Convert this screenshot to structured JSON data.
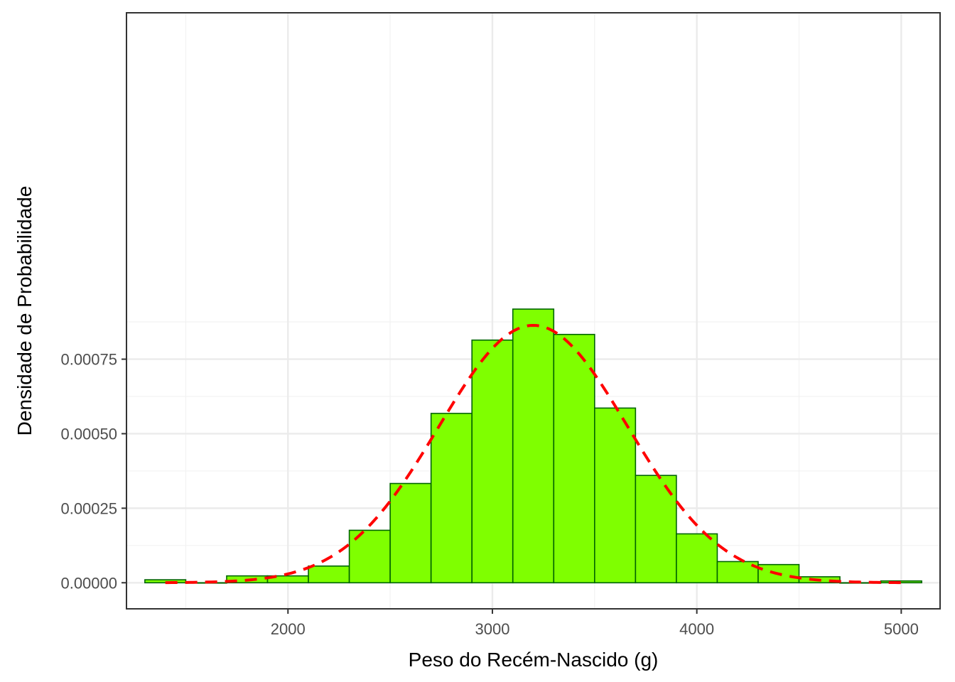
{
  "chart_data": {
    "type": "histogram",
    "xlabel": "Peso do Recém-Nascido (g)",
    "ylabel": "Densidade de Probabilidade",
    "xlim": [
      1210,
      5190
    ],
    "ylim": [
      -8.75e-05,
      0.001912
    ],
    "x_ticks": [
      2000,
      3000,
      4000,
      5000
    ],
    "y_ticks": [
      0.0,
      0.00025,
      0.0005,
      0.00075
    ],
    "y_tick_labels": [
      "0.00000",
      "0.00025",
      "0.00050",
      "0.00075"
    ],
    "x_minor_ticks": [
      1500,
      2500,
      3500,
      4500
    ],
    "y_minor_ticks": [
      0.000125,
      0.000375,
      0.000625,
      0.000875
    ],
    "grid": true,
    "bars": {
      "fill_color": "#7FFF00",
      "edge_color": "#006400",
      "bin_width": 200,
      "bin_starts": [
        1300,
        1500,
        1700,
        1900,
        2100,
        2300,
        2500,
        2700,
        2900,
        3100,
        3300,
        3500,
        3700,
        3900,
        4100,
        4300,
        4500,
        4700,
        4900
      ],
      "densities": [
        1e-05,
        0.0,
        2.3e-05,
        2.3e-05,
        5.6e-05,
        0.000176,
        0.000333,
        0.000568,
        0.000814,
        0.000918,
        0.000833,
        0.000586,
        0.00036,
        0.000164,
        7.1e-05,
        6.1e-05,
        2e-05,
        0.0,
        6e-06
      ]
    },
    "density_curve": {
      "type": "normal",
      "mean": 3200,
      "sd": 462,
      "color": "#FF0000",
      "style": "dashed",
      "x_range": [
        1400,
        5000
      ]
    }
  }
}
